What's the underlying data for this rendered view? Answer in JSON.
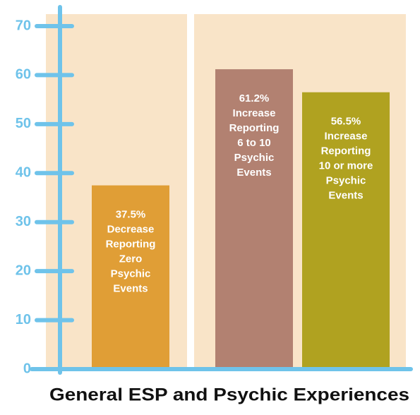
{
  "chart_data": {
    "type": "bar",
    "title": "General ESP and Psychic Experiences",
    "categories": [
      null,
      null,
      null
    ],
    "values": [
      37.5,
      61.2,
      56.5
    ],
    "value_labels": [
      "37.5%",
      "61.2%",
      "56.5%"
    ],
    "descriptions": [
      [
        "Decrease",
        "Reporting",
        "Zero",
        "Psychic",
        "Events"
      ],
      [
        "Increase",
        "Reporting",
        "6 to 10",
        "Psychic",
        "Events"
      ],
      [
        "Increase",
        "Reporting",
        "10 or more",
        "Psychic",
        "Events"
      ]
    ],
    "colors": [
      "#e09e36",
      "#b28171",
      "#b0a220"
    ],
    "ylim": [
      0,
      70
    ],
    "yticks": [
      0,
      10,
      20,
      30,
      40,
      50,
      60,
      70
    ],
    "axis_color": "#6fc3ea",
    "background_color": "#f9e4c8"
  }
}
